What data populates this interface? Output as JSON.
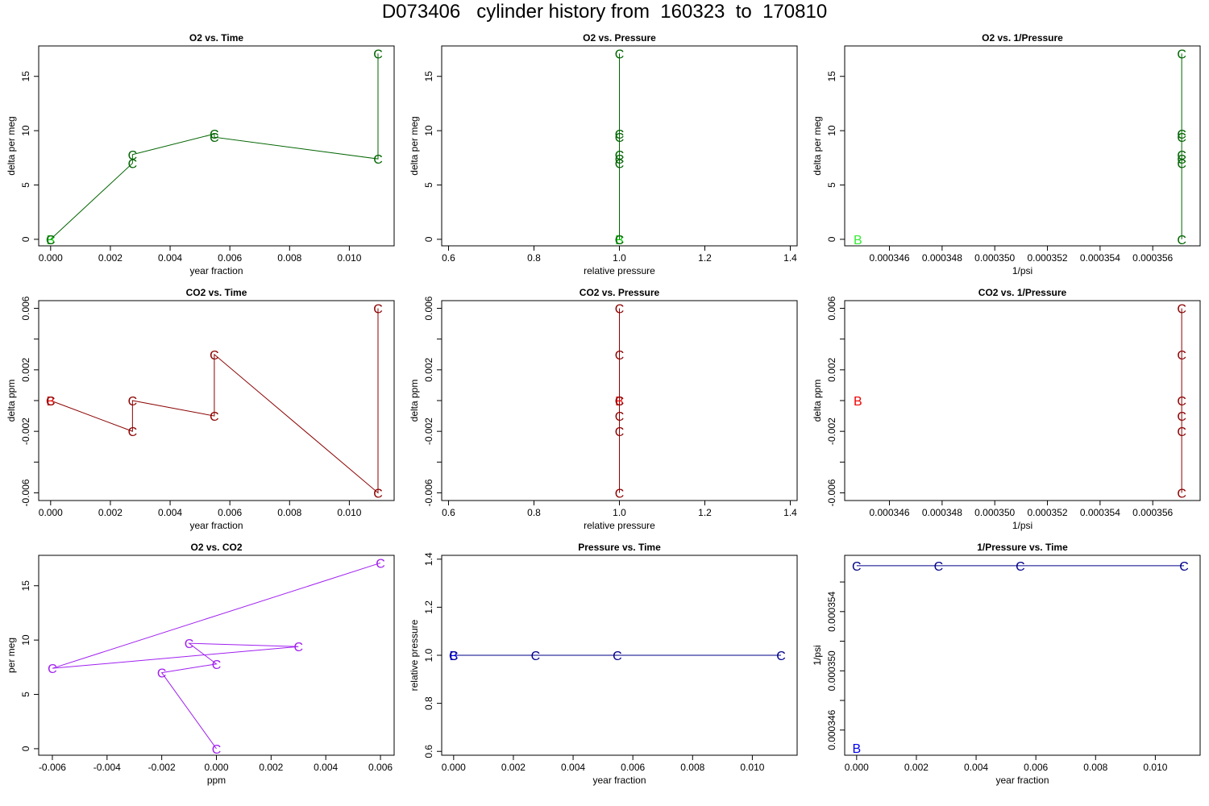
{
  "title": "D073406   cylinder history from  160323  to  170810",
  "chart_data": [
    {
      "id": "o2_time",
      "type": "scatter",
      "title": "O2 vs. Time",
      "xlabel": "year fraction",
      "ylabel": "delta per meg",
      "xlim": [
        -0.0004,
        0.0115
      ],
      "ylim": [
        -0.6,
        17.8
      ],
      "xticks": [
        0,
        0.002,
        0.004,
        0.006,
        0.008,
        0.01
      ],
      "xtick_labels": [
        "0.000",
        "0.002",
        "0.004",
        "0.006",
        "0.008",
        "0.010"
      ],
      "yticks": [
        0,
        5,
        10,
        15
      ],
      "ytick_labels": [
        "0",
        "5",
        "10",
        "15"
      ],
      "ytick_rotate": true,
      "line_color": "#006400",
      "points": [
        {
          "x": 0,
          "y": 0,
          "label": "B",
          "color": "#00cc00"
        },
        {
          "x": 0,
          "y": 0,
          "label": "C",
          "color": "#006400"
        },
        {
          "x": 0.00274,
          "y": 7.0,
          "label": "C",
          "color": "#006400"
        },
        {
          "x": 0.00274,
          "y": 7.8,
          "label": "C",
          "color": "#006400"
        },
        {
          "x": 0.00548,
          "y": 9.7,
          "label": "C",
          "color": "#006400"
        },
        {
          "x": 0.00548,
          "y": 9.4,
          "label": "C",
          "color": "#006400"
        },
        {
          "x": 0.01096,
          "y": 7.4,
          "label": "C",
          "color": "#006400"
        },
        {
          "x": 0.01096,
          "y": 17.1,
          "label": "C",
          "color": "#006400"
        }
      ],
      "path": [
        [
          0,
          0
        ],
        [
          0.00274,
          7.0
        ],
        [
          0.00274,
          7.8
        ],
        [
          0.00548,
          9.7
        ],
        [
          0.00548,
          9.4
        ],
        [
          0.01096,
          7.4
        ],
        [
          0.01096,
          17.1
        ]
      ]
    },
    {
      "id": "o2_pressure",
      "type": "scatter",
      "title": "O2 vs. Pressure",
      "xlabel": "relative pressure",
      "ylabel": "delta per meg",
      "xlim": [
        0.584,
        1.416
      ],
      "ylim": [
        -0.6,
        17.8
      ],
      "xticks": [
        0.6,
        0.8,
        1.0,
        1.2,
        1.4
      ],
      "xtick_labels": [
        "0.6",
        "0.8",
        "1.0",
        "1.2",
        "1.4"
      ],
      "yticks": [
        0,
        5,
        10,
        15
      ],
      "ytick_labels": [
        "0",
        "5",
        "10",
        "15"
      ],
      "ytick_rotate": true,
      "line_color": "#006400",
      "points": [
        {
          "x": 1,
          "y": 0,
          "label": "B",
          "color": "#00cc00"
        },
        {
          "x": 1,
          "y": 0,
          "label": "C",
          "color": "#006400"
        },
        {
          "x": 1,
          "y": 7.0,
          "label": "C",
          "color": "#006400"
        },
        {
          "x": 1,
          "y": 7.4,
          "label": "C",
          "color": "#006400"
        },
        {
          "x": 1,
          "y": 7.8,
          "label": "C",
          "color": "#006400"
        },
        {
          "x": 1,
          "y": 9.4,
          "label": "C",
          "color": "#006400"
        },
        {
          "x": 1,
          "y": 9.7,
          "label": "C",
          "color": "#006400"
        },
        {
          "x": 1,
          "y": 17.1,
          "label": "C",
          "color": "#006400"
        }
      ],
      "path": [
        [
          1,
          0
        ],
        [
          1,
          17.1
        ]
      ]
    },
    {
      "id": "o2_invpressure",
      "type": "scatter",
      "title": "O2 vs. 1/Pressure",
      "xlabel": "1/psi",
      "ylabel": "delta per meg",
      "xlim": [
        0.0003443,
        0.0003578
      ],
      "ylim": [
        -0.6,
        17.8
      ],
      "xticks": [
        0.000346,
        0.000348,
        0.00035,
        0.000352,
        0.000354,
        0.000356
      ],
      "xtick_labels": [
        "0.000346",
        "0.000348",
        "0.000350",
        "0.000352",
        "0.000354",
        "0.000356"
      ],
      "yticks": [
        0,
        5,
        10,
        15
      ],
      "ytick_labels": [
        "0",
        "5",
        "10",
        "15"
      ],
      "ytick_rotate": true,
      "line_color": "#006400",
      "points": [
        {
          "x": 0.0003448,
          "y": 0,
          "label": "B",
          "color": "#33ee33"
        },
        {
          "x": 0.0003571,
          "y": 0,
          "label": "C",
          "color": "#006400"
        },
        {
          "x": 0.0003571,
          "y": 7.0,
          "label": "C",
          "color": "#006400"
        },
        {
          "x": 0.0003571,
          "y": 7.4,
          "label": "C",
          "color": "#006400"
        },
        {
          "x": 0.0003571,
          "y": 7.8,
          "label": "C",
          "color": "#006400"
        },
        {
          "x": 0.0003571,
          "y": 9.4,
          "label": "C",
          "color": "#006400"
        },
        {
          "x": 0.0003571,
          "y": 9.7,
          "label": "C",
          "color": "#006400"
        },
        {
          "x": 0.0003571,
          "y": 17.1,
          "label": "C",
          "color": "#006400"
        }
      ],
      "path": [
        [
          0.0003571,
          0
        ],
        [
          0.0003571,
          17.1
        ]
      ]
    },
    {
      "id": "co2_time",
      "type": "scatter",
      "title": "CO2 vs. Time",
      "xlabel": "year fraction",
      "ylabel": "delta ppm",
      "xlim": [
        -0.0004,
        0.0115
      ],
      "ylim": [
        -0.0065,
        0.0065
      ],
      "xticks": [
        0,
        0.002,
        0.004,
        0.006,
        0.008,
        0.01
      ],
      "xtick_labels": [
        "0.000",
        "0.002",
        "0.004",
        "0.006",
        "0.008",
        "0.010"
      ],
      "yticks": [
        -0.006,
        -0.004,
        -0.002,
        0,
        0.002,
        0.004,
        0.006
      ],
      "ytick_labels": [
        "-0.006",
        "",
        "-0.002",
        "",
        "0.002",
        "",
        "0.006"
      ],
      "ytick_rotate": true,
      "line_color": "#8b0000",
      "points": [
        {
          "x": 0,
          "y": 0,
          "label": "B",
          "color": "#ee0000"
        },
        {
          "x": 0,
          "y": 0,
          "label": "C",
          "color": "#8b0000"
        },
        {
          "x": 0.00274,
          "y": 0,
          "label": "C",
          "color": "#8b0000"
        },
        {
          "x": 0.00274,
          "y": -0.002,
          "label": "C",
          "color": "#8b0000"
        },
        {
          "x": 0.00548,
          "y": -0.001,
          "label": "C",
          "color": "#8b0000"
        },
        {
          "x": 0.00548,
          "y": 0.003,
          "label": "C",
          "color": "#8b0000"
        },
        {
          "x": 0.01096,
          "y": -0.006,
          "label": "C",
          "color": "#8b0000"
        },
        {
          "x": 0.01096,
          "y": 0.006,
          "label": "C",
          "color": "#8b0000"
        }
      ],
      "path": [
        [
          0,
          0
        ],
        [
          0.00274,
          -0.002
        ],
        [
          0.00274,
          0
        ],
        [
          0.00548,
          -0.001
        ],
        [
          0.00548,
          0.003
        ],
        [
          0.01096,
          -0.006
        ],
        [
          0.01096,
          0.006
        ]
      ]
    },
    {
      "id": "co2_pressure",
      "type": "scatter",
      "title": "CO2 vs. Pressure",
      "xlabel": "relative pressure",
      "ylabel": "delta ppm",
      "xlim": [
        0.584,
        1.416
      ],
      "ylim": [
        -0.0065,
        0.0065
      ],
      "xticks": [
        0.6,
        0.8,
        1.0,
        1.2,
        1.4
      ],
      "xtick_labels": [
        "0.6",
        "0.8",
        "1.0",
        "1.2",
        "1.4"
      ],
      "yticks": [
        -0.006,
        -0.004,
        -0.002,
        0,
        0.002,
        0.004,
        0.006
      ],
      "ytick_labels": [
        "-0.006",
        "",
        "-0.002",
        "",
        "0.002",
        "",
        "0.006"
      ],
      "ytick_rotate": true,
      "line_color": "#8b0000",
      "points": [
        {
          "x": 1,
          "y": 0,
          "label": "B",
          "color": "#ee0000"
        },
        {
          "x": 1,
          "y": 0,
          "label": "C",
          "color": "#8b0000"
        },
        {
          "x": 1,
          "y": -0.001,
          "label": "C",
          "color": "#8b0000"
        },
        {
          "x": 1,
          "y": -0.002,
          "label": "C",
          "color": "#8b0000"
        },
        {
          "x": 1,
          "y": 0.003,
          "label": "C",
          "color": "#8b0000"
        },
        {
          "x": 1,
          "y": -0.006,
          "label": "C",
          "color": "#8b0000"
        },
        {
          "x": 1,
          "y": 0.006,
          "label": "C",
          "color": "#8b0000"
        }
      ],
      "path": [
        [
          1,
          -0.006
        ],
        [
          1,
          0.006
        ]
      ]
    },
    {
      "id": "co2_invpressure",
      "type": "scatter",
      "title": "CO2 vs. 1/Pressure",
      "xlabel": "1/psi",
      "ylabel": "delta ppm",
      "xlim": [
        0.0003443,
        0.0003578
      ],
      "ylim": [
        -0.0065,
        0.0065
      ],
      "xticks": [
        0.000346,
        0.000348,
        0.00035,
        0.000352,
        0.000354,
        0.000356
      ],
      "xtick_labels": [
        "0.000346",
        "0.000348",
        "0.000350",
        "0.000352",
        "0.000354",
        "0.000356"
      ],
      "yticks": [
        -0.006,
        -0.004,
        -0.002,
        0,
        0.002,
        0.004,
        0.006
      ],
      "ytick_labels": [
        "-0.006",
        "",
        "-0.002",
        "",
        "0.002",
        "",
        "0.006"
      ],
      "ytick_rotate": true,
      "line_color": "#8b0000",
      "points": [
        {
          "x": 0.0003448,
          "y": 0,
          "label": "B",
          "color": "#ee0000"
        },
        {
          "x": 0.0003571,
          "y": 0,
          "label": "C",
          "color": "#8b0000"
        },
        {
          "x": 0.0003571,
          "y": -0.001,
          "label": "C",
          "color": "#8b0000"
        },
        {
          "x": 0.0003571,
          "y": -0.002,
          "label": "C",
          "color": "#8b0000"
        },
        {
          "x": 0.0003571,
          "y": 0.003,
          "label": "C",
          "color": "#8b0000"
        },
        {
          "x": 0.0003571,
          "y": -0.006,
          "label": "C",
          "color": "#8b0000"
        },
        {
          "x": 0.0003571,
          "y": 0.006,
          "label": "C",
          "color": "#8b0000"
        }
      ],
      "path": [
        [
          0.0003571,
          -0.006
        ],
        [
          0.0003571,
          0.006
        ]
      ]
    },
    {
      "id": "o2_co2",
      "type": "scatter",
      "title": "O2 vs. CO2",
      "xlabel": "ppm",
      "ylabel": "per meg",
      "xlim": [
        -0.0065,
        0.0065
      ],
      "ylim": [
        -0.6,
        17.8
      ],
      "xticks": [
        -0.006,
        -0.004,
        -0.002,
        0,
        0.002,
        0.004,
        0.006
      ],
      "xtick_labels": [
        "-0.006",
        "-0.004",
        "-0.002",
        "0.000",
        "0.002",
        "0.004",
        "0.006"
      ],
      "yticks": [
        0,
        5,
        10,
        15
      ],
      "ytick_labels": [
        "0",
        "5",
        "10",
        "15"
      ],
      "ytick_rotate": true,
      "line_color": "#a020f0",
      "points": [
        {
          "x": 0,
          "y": 0,
          "label": "C",
          "color": "#a020f0"
        },
        {
          "x": -0.002,
          "y": 7.0,
          "label": "C",
          "color": "#a020f0"
        },
        {
          "x": 0,
          "y": 7.8,
          "label": "C",
          "color": "#a020f0"
        },
        {
          "x": -0.001,
          "y": 9.7,
          "label": "C",
          "color": "#a020f0"
        },
        {
          "x": 0.003,
          "y": 9.4,
          "label": "C",
          "color": "#a020f0"
        },
        {
          "x": -0.006,
          "y": 7.4,
          "label": "C",
          "color": "#a020f0"
        },
        {
          "x": 0.006,
          "y": 17.1,
          "label": "C",
          "color": "#a020f0"
        }
      ],
      "path": [
        [
          0,
          0
        ],
        [
          -0.002,
          7.0
        ],
        [
          0,
          7.8
        ],
        [
          -0.001,
          9.7
        ],
        [
          0.003,
          9.4
        ],
        [
          -0.006,
          7.4
        ],
        [
          0.006,
          17.1
        ]
      ]
    },
    {
      "id": "pressure_time",
      "type": "scatter",
      "title": "Pressure vs. Time",
      "xlabel": "year fraction",
      "ylabel": "relative pressure",
      "xlim": [
        -0.0004,
        0.0115
      ],
      "ylim": [
        0.584,
        1.416
      ],
      "xticks": [
        0,
        0.002,
        0.004,
        0.006,
        0.008,
        0.01
      ],
      "xtick_labels": [
        "0.000",
        "0.002",
        "0.004",
        "0.006",
        "0.008",
        "0.010"
      ],
      "yticks": [
        0.6,
        0.8,
        1.0,
        1.2,
        1.4
      ],
      "ytick_labels": [
        "0.6",
        "0.8",
        "1.0",
        "1.2",
        "1.4"
      ],
      "ytick_rotate": true,
      "line_color": "#00008b",
      "points": [
        {
          "x": 0,
          "y": 1,
          "label": "B",
          "color": "#0000ee"
        },
        {
          "x": 0,
          "y": 1,
          "label": "C",
          "color": "#00008b"
        },
        {
          "x": 0.00274,
          "y": 1,
          "label": "C",
          "color": "#00008b"
        },
        {
          "x": 0.00548,
          "y": 1,
          "label": "C",
          "color": "#00008b"
        },
        {
          "x": 0.01096,
          "y": 1,
          "label": "C",
          "color": "#00008b"
        }
      ],
      "path": [
        [
          0,
          1
        ],
        [
          0.01096,
          1
        ]
      ]
    },
    {
      "id": "invpressure_time",
      "type": "scatter",
      "title": "1/Pressure vs. Time",
      "xlabel": "year fraction",
      "ylabel": "1/psi",
      "xlim": [
        -0.0004,
        0.0115
      ],
      "ylim": [
        0.0003443,
        0.0003578
      ],
      "xticks": [
        0,
        0.002,
        0.004,
        0.006,
        0.008,
        0.01
      ],
      "xtick_labels": [
        "0.000",
        "0.002",
        "0.004",
        "0.006",
        "0.008",
        "0.010"
      ],
      "yticks": [
        0.000346,
        0.000348,
        0.00035,
        0.000352,
        0.000354,
        0.000356
      ],
      "ytick_labels": [
        "0.000346",
        "",
        "0.000350",
        "",
        "0.000354",
        ""
      ],
      "ytick_rotate": true,
      "line_color": "#00008b",
      "points": [
        {
          "x": 0,
          "y": 0.0003448,
          "label": "B",
          "color": "#0000ee"
        },
        {
          "x": 0,
          "y": 0.0003571,
          "label": "C",
          "color": "#00008b"
        },
        {
          "x": 0.00274,
          "y": 0.0003571,
          "label": "C",
          "color": "#00008b"
        },
        {
          "x": 0.00548,
          "y": 0.0003571,
          "label": "C",
          "color": "#00008b"
        },
        {
          "x": 0.01096,
          "y": 0.0003571,
          "label": "C",
          "color": "#00008b"
        }
      ],
      "path": [
        [
          0,
          0.0003571
        ],
        [
          0.01096,
          0.0003571
        ]
      ]
    }
  ]
}
